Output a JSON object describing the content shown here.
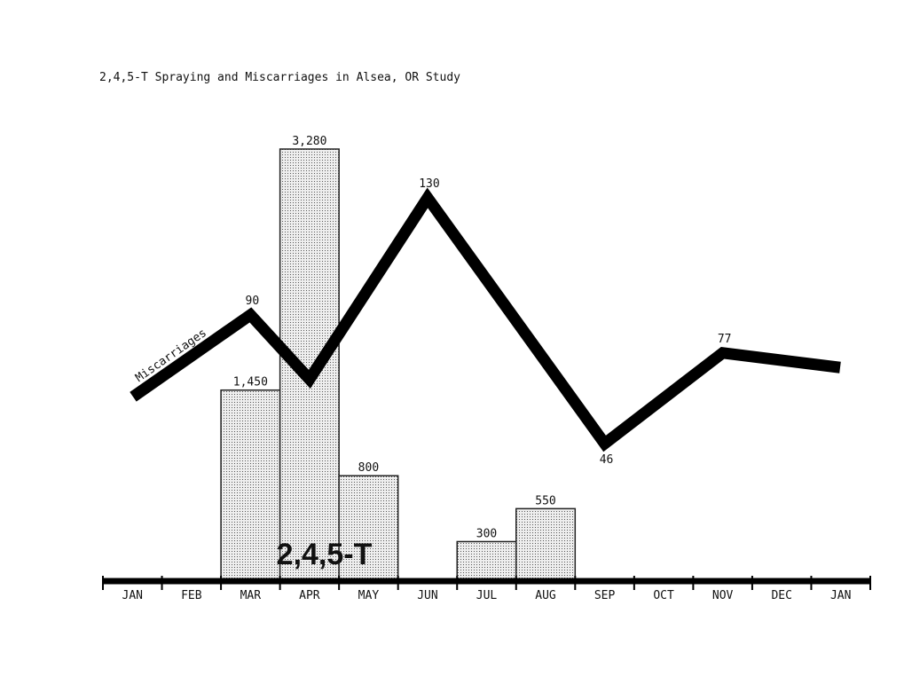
{
  "chart_data": {
    "title": "2,4,5-T Spraying and Miscarriages in Alsea, OR Study",
    "type": "bar",
    "categories": [
      "JAN",
      "FEB",
      "MAR",
      "APR",
      "MAY",
      "JUN",
      "JUL",
      "AUG",
      "SEP",
      "OCT",
      "NOV",
      "DEC",
      "JAN"
    ],
    "bars": {
      "name": "2,4,5-T",
      "values": [
        null,
        null,
        1450,
        3280,
        800,
        null,
        300,
        550,
        null,
        null,
        null,
        null,
        null
      ],
      "labels": [
        "",
        "",
        "1,450",
        "3,280",
        "800",
        "",
        "300",
        "550",
        "",
        "",
        "",
        "",
        ""
      ],
      "ylim": [
        0,
        3280
      ]
    },
    "line": {
      "name": "Miscarriages",
      "points": [
        {
          "x": 0,
          "y": 62
        },
        {
          "x": 2,
          "y": 90
        },
        {
          "x": 3,
          "y": 68
        },
        {
          "x": 5,
          "y": 130
        },
        {
          "x": 8,
          "y": 46
        },
        {
          "x": 10,
          "y": 77
        },
        {
          "x": 12,
          "y": 72
        }
      ],
      "labels": [
        {
          "index": 1,
          "text": "90"
        },
        {
          "index": 3,
          "text": "130"
        },
        {
          "index": 4,
          "text": "46"
        },
        {
          "index": 5,
          "text": "77"
        }
      ],
      "ylim": [
        0,
        130
      ]
    },
    "grid": false,
    "legend": "none",
    "colors": {
      "bar_fill": "#e6e6e6",
      "bar_stroke": "#222222",
      "line": "#000000",
      "axis": "#000000"
    }
  }
}
